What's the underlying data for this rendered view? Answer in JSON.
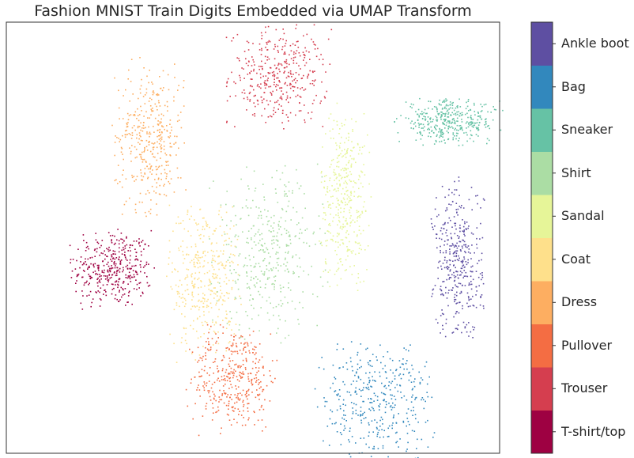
{
  "chart_data": {
    "type": "scatter",
    "title": "Fashion MNIST Train Digits Embedded via UMAP Transform",
    "xlabel": "",
    "ylabel": "",
    "xlim": [
      0,
      100
    ],
    "ylim": [
      0,
      100
    ],
    "grid": false,
    "legend_placement": "right colorbar",
    "classes": [
      "T-shirt/top",
      "Trouser",
      "Pullover",
      "Dress",
      "Coat",
      "Sandal",
      "Shirt",
      "Sneaker",
      "Bag",
      "Ankle boot"
    ],
    "class_colors": [
      "#9e0142",
      "#d53e4f",
      "#f46d43",
      "#fdae61",
      "#fee08b",
      "#e6f598",
      "#abdda4",
      "#66c2a5",
      "#3288bd",
      "#5e4fa2"
    ],
    "clusters": [
      {
        "label": "T-shirt/top",
        "center": [
          21.5,
          43.0
        ],
        "spread": [
          4.0,
          4.5
        ]
      },
      {
        "label": "Trouser",
        "center": [
          55.0,
          87.5
        ],
        "spread": [
          5.0,
          5.5
        ]
      },
      {
        "label": "Pullover",
        "center": [
          46.0,
          17.5
        ],
        "spread": [
          4.5,
          6.0
        ]
      },
      {
        "label": "Dress",
        "center": [
          29.0,
          73.5
        ],
        "spread": [
          3.5,
          8.5
        ]
      },
      {
        "label": "Coat",
        "center": [
          40.0,
          41.0
        ],
        "spread": [
          3.5,
          9.0
        ]
      },
      {
        "label": "Sandal",
        "center": [
          68.5,
          59.5
        ],
        "spread": [
          2.5,
          10.0
        ]
      },
      {
        "label": "Shirt",
        "center": [
          53.0,
          46.5
        ],
        "spread": [
          5.5,
          9.5
        ]
      },
      {
        "label": "Sneaker",
        "center": [
          89.5,
          77.0
        ],
        "spread": [
          5.0,
          2.5
        ]
      },
      {
        "label": "Bag",
        "center": [
          75.0,
          12.5
        ],
        "spread": [
          6.0,
          6.5
        ]
      },
      {
        "label": "Ankle boot",
        "center": [
          91.5,
          44.5
        ],
        "spread": [
          2.5,
          9.0
        ]
      }
    ]
  }
}
